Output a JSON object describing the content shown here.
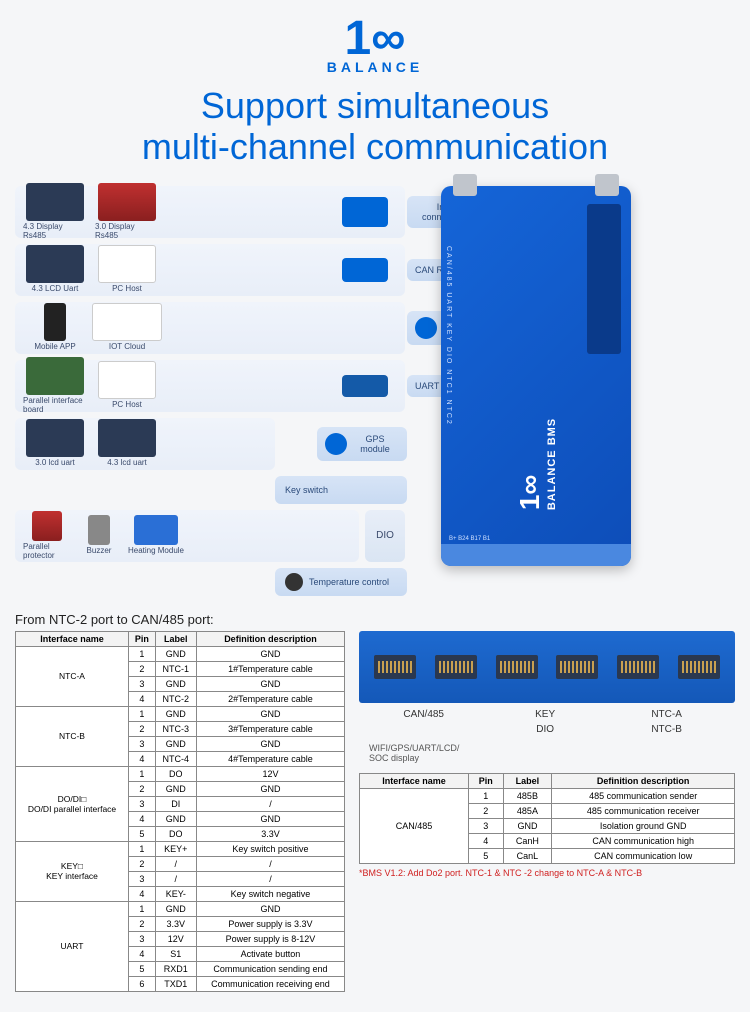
{
  "logo": {
    "brand": "BALANCE",
    "mark": "1∞"
  },
  "headline": "Support simultaneous\nmulti-channel communication",
  "modules": {
    "row1": {
      "a": "4.3 Display Rs485",
      "b": "3.0 Display Rs485",
      "port": "Inverter connection line"
    },
    "row2": {
      "a": "4.3 LCD Uart",
      "b": "PC Host",
      "port": "CAN  RS485"
    },
    "row3": {
      "a": "Mobile APP",
      "b": "IOT Cloud",
      "port": "WIFI module"
    },
    "row4": {
      "a": "Parallel interface board",
      "b": "PC Host",
      "port": "UART"
    },
    "row5": {
      "a": "3.0 lcd uart",
      "b": "4.3 lcd uart",
      "port": "GPS module"
    },
    "key": "Key switch",
    "row6": {
      "a": "Parallel protector",
      "b": "Buzzer",
      "c": "Heating Module",
      "dio": "DIO"
    },
    "temp": "Temperature control"
  },
  "device": {
    "logo_line1": "1∞",
    "logo_line2": "BALANCE BMS",
    "ports_side": "CAN/485  UART  KEY  DIO  NTC1  NTC2",
    "tiny": "B+ B24                  B17                    B1"
  },
  "section_title": "From NTC-2 port to CAN/485 port:",
  "table1": {
    "headers": [
      "Interface name",
      "Pin",
      "Label",
      "Definition description"
    ],
    "groups": [
      {
        "name": "NTC-A",
        "rows": [
          [
            "1",
            "GND",
            "GND"
          ],
          [
            "2",
            "NTC-1",
            "1#Temperature cable"
          ],
          [
            "3",
            "GND",
            "GND"
          ],
          [
            "4",
            "NTC-2",
            "2#Temperature cable"
          ]
        ]
      },
      {
        "name": "NTC-B",
        "rows": [
          [
            "1",
            "GND",
            "GND"
          ],
          [
            "2",
            "NTC-3",
            "3#Temperature cable"
          ],
          [
            "3",
            "GND",
            "GND"
          ],
          [
            "4",
            "NTC-4",
            "4#Temperature cable"
          ]
        ]
      },
      {
        "name": "DO/DI□\nDO/DI parallel interface",
        "rows": [
          [
            "1",
            "DO",
            "12V"
          ],
          [
            "2",
            "GND",
            "GND"
          ],
          [
            "3",
            "DI",
            "/"
          ],
          [
            "4",
            "GND",
            "GND"
          ],
          [
            "5",
            "DO",
            "3.3V"
          ]
        ]
      },
      {
        "name": "KEY□\nKEY interface",
        "rows": [
          [
            "1",
            "KEY+",
            "Key switch positive"
          ],
          [
            "2",
            "/",
            "/"
          ],
          [
            "3",
            "/",
            "/"
          ],
          [
            "4",
            "KEY-",
            "Key switch negative"
          ]
        ]
      },
      {
        "name": "UART",
        "rows": [
          [
            "1",
            "GND",
            "GND"
          ],
          [
            "2",
            "3.3V",
            "Power supply is 3.3V"
          ],
          [
            "3",
            "12V",
            "Power supply is 8-12V"
          ],
          [
            "4",
            "S1",
            "Activate button"
          ],
          [
            "5",
            "RXD1",
            "Communication sending end"
          ],
          [
            "6",
            "TXD1",
            "Communication receiving end"
          ]
        ]
      }
    ]
  },
  "port_strip": {
    "labels_top": [
      "CAN/485",
      "KEY",
      "NTC-A"
    ],
    "labels_bot": [
      "",
      "DIO",
      "NTC-B"
    ],
    "sub": "WIFI/GPS/UART/LCD/\nSOC display"
  },
  "table2": {
    "headers": [
      "Interface name",
      "Pin",
      "Label",
      "Definition description"
    ],
    "name": "CAN/485",
    "rows": [
      [
        "1",
        "485B",
        "485 communication sender"
      ],
      [
        "2",
        "485A",
        "485 communication receiver"
      ],
      [
        "3",
        "GND",
        "Isolation ground GND"
      ],
      [
        "4",
        "CanH",
        "CAN  communication high"
      ],
      [
        "5",
        "CanL",
        "CAN communication low"
      ]
    ]
  },
  "footnote": "*BMS V1.2: Add Do2 port. NTC-1 & NTC -2 change to NTC-A & NTC-B"
}
